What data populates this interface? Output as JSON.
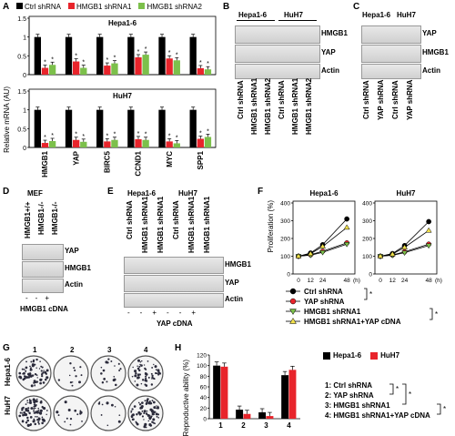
{
  "panels": {
    "A": {
      "letter": "A",
      "legend": [
        "Ctrl shRNA",
        "HMGB1 shRNA1",
        "HMGB1 shRNA2"
      ],
      "ylabel": "Relative mRNA (AU)",
      "cell_lines": [
        "Hepa1-6",
        "HuH7"
      ]
    },
    "B": {
      "letter": "B",
      "cells": [
        "Hepa1-6",
        "HuH7"
      ],
      "rows": [
        "HMGB1",
        "YAP",
        "Actin"
      ],
      "lanes": [
        "Ctrl shRNA",
        "HMGB1 shRNA1",
        "HMGB1 shRNA2",
        "Ctrl shRNA",
        "HMGB1 shRNA1",
        "HMGB1 shRNA2"
      ]
    },
    "C": {
      "letter": "C",
      "cells": [
        "Hepa1-6",
        "HuH7"
      ],
      "rows": [
        "YAP",
        "HMGB1",
        "Actin"
      ],
      "lanes": [
        "Ctrl shRNA",
        "YAP shRNA",
        "Ctrl shRNA",
        "YAP shRNA"
      ]
    },
    "D": {
      "letter": "D",
      "title": "MEF",
      "rows": [
        "YAP",
        "HMGB1",
        "Actin"
      ],
      "lanes": [
        "HMGB1+/+",
        "HMGB1-/-",
        "HMGB1-/-"
      ],
      "cdna": [
        "-",
        "-",
        "+"
      ],
      "cdna_label": "HMGB1 cDNA"
    },
    "E": {
      "letter": "E",
      "cells": [
        "Hepa1-6",
        "HuH7"
      ],
      "rows": [
        "HMGB1",
        "YAP",
        "Actin"
      ],
      "lanes": [
        "Ctrl shRNA",
        "HMGB1 shRNA1",
        "HMGB1 shRNA1",
        "Ctrl shRNA",
        "HMGB1 shRNA1",
        "HMGB1 shRNA1"
      ],
      "cdna": [
        "-",
        "-",
        "+",
        "-",
        "-",
        "+"
      ],
      "cdna_label": "YAP cDNA"
    },
    "F": {
      "letter": "F",
      "ylabel": "Proliferation (%)",
      "legend": [
        "Ctrl shRNA",
        "YAP shRNA",
        "HMGB1 shRNA1",
        "HMGB1 shRNA1+YAP cDNA"
      ],
      "star": "*"
    },
    "G": {
      "letter": "G",
      "cols": [
        "1",
        "2",
        "3",
        "4"
      ],
      "rows": [
        "Hepa1-6",
        "HuH7"
      ]
    },
    "H": {
      "letter": "H",
      "ylabel": "Reproductive ability (%)",
      "legend": [
        "Hepa1-6",
        "HuH7"
      ],
      "conditions": [
        "1: Ctrl shRNA",
        "2: YAP shRNA",
        "3: HMGB1 shRNA1",
        "4: HMGB1 shRNA1+YAP cDNA"
      ],
      "star": "*"
    }
  },
  "chart_data": [
    {
      "id": "A-Hepa1-6",
      "type": "bar",
      "title": "Hepa1-6",
      "categories": [
        "HMGB1",
        "YAP",
        "BIRC5",
        "CCND1",
        "MYC",
        "SPP1"
      ],
      "ylim": [
        0,
        1.5
      ],
      "yticks": [
        0,
        0.5,
        1,
        1.5
      ],
      "series": [
        {
          "name": "Ctrl shRNA",
          "color": "#000000",
          "values": [
            1.0,
            1.0,
            1.0,
            1.0,
            1.0,
            1.0
          ]
        },
        {
          "name": "HMGB1 shRNA1",
          "color": "#e8242b",
          "values": [
            0.18,
            0.35,
            0.24,
            0.46,
            0.43,
            0.17
          ]
        },
        {
          "name": "HMGB1 shRNA2",
          "color": "#7cc04b",
          "values": [
            0.26,
            0.18,
            0.3,
            0.53,
            0.38,
            0.14
          ]
        }
      ]
    },
    {
      "id": "A-HuH7",
      "type": "bar",
      "title": "HuH7",
      "categories": [
        "HMGB1",
        "YAP",
        "BIRC5",
        "CCND1",
        "MYC",
        "SPP1"
      ],
      "ylim": [
        0,
        1.5
      ],
      "yticks": [
        0,
        0.5,
        1,
        1.5
      ],
      "series": [
        {
          "name": "Ctrl shRNA",
          "color": "#000000",
          "values": [
            1.0,
            1.0,
            1.0,
            1.0,
            1.0,
            1.0
          ]
        },
        {
          "name": "HMGB1 shRNA1",
          "color": "#e8242b",
          "values": [
            0.12,
            0.2,
            0.16,
            0.22,
            0.16,
            0.23
          ]
        },
        {
          "name": "HMGB1 shRNA2",
          "color": "#7cc04b",
          "values": [
            0.17,
            0.15,
            0.2,
            0.2,
            0.11,
            0.28
          ]
        }
      ]
    },
    {
      "id": "F-Hepa1-6",
      "type": "line",
      "title": "Hepa1-6",
      "x": [
        0,
        12,
        24,
        48
      ],
      "xunit": "(h)",
      "ylim": [
        0,
        400
      ],
      "yticks": [
        0,
        100,
        200,
        300,
        400
      ],
      "series": [
        {
          "name": "Ctrl shRNA",
          "color": "#000000",
          "marker": "circle",
          "values": [
            100,
            118,
            165,
            310
          ]
        },
        {
          "name": "YAP shRNA",
          "color": "#e8242b",
          "marker": "circle",
          "values": [
            100,
            108,
            128,
            175
          ]
        },
        {
          "name": "HMGB1 shRNA1",
          "color": "#7cc04b",
          "marker": "triangle-down",
          "values": [
            100,
            106,
            122,
            168
          ]
        },
        {
          "name": "HMGB1 shRNA1+YAP cDNA",
          "color": "#f2e14c",
          "marker": "triangle-up",
          "values": [
            100,
            114,
            155,
            262
          ]
        }
      ]
    },
    {
      "id": "F-HuH7",
      "type": "line",
      "title": "HuH7",
      "x": [
        0,
        12,
        24,
        48
      ],
      "xunit": "(h)",
      "ylim": [
        0,
        400
      ],
      "yticks": [
        0,
        100,
        200,
        300,
        400
      ],
      "series": [
        {
          "name": "Ctrl shRNA",
          "color": "#000000",
          "marker": "circle",
          "values": [
            100,
            115,
            160,
            295
          ]
        },
        {
          "name": "YAP shRNA",
          "color": "#e8242b",
          "marker": "circle",
          "values": [
            100,
            107,
            125,
            168
          ]
        },
        {
          "name": "HMGB1 shRNA1",
          "color": "#7cc04b",
          "marker": "triangle-down",
          "values": [
            100,
            105,
            120,
            160
          ]
        },
        {
          "name": "HMGB1 shRNA1+YAP cDNA",
          "color": "#f2e14c",
          "marker": "triangle-up",
          "values": [
            100,
            112,
            150,
            245
          ]
        }
      ]
    },
    {
      "id": "H",
      "type": "bar",
      "categories": [
        "1",
        "2",
        "3",
        "4"
      ],
      "ylim": [
        0,
        120
      ],
      "yticks": [
        0,
        20,
        40,
        60,
        80,
        100,
        120
      ],
      "series": [
        {
          "name": "Hepa1-6",
          "color": "#000000",
          "values": [
            100,
            17,
            12,
            82
          ]
        },
        {
          "name": "HuH7",
          "color": "#e8242b",
          "values": [
            98,
            9,
            5,
            92
          ]
        }
      ]
    }
  ]
}
